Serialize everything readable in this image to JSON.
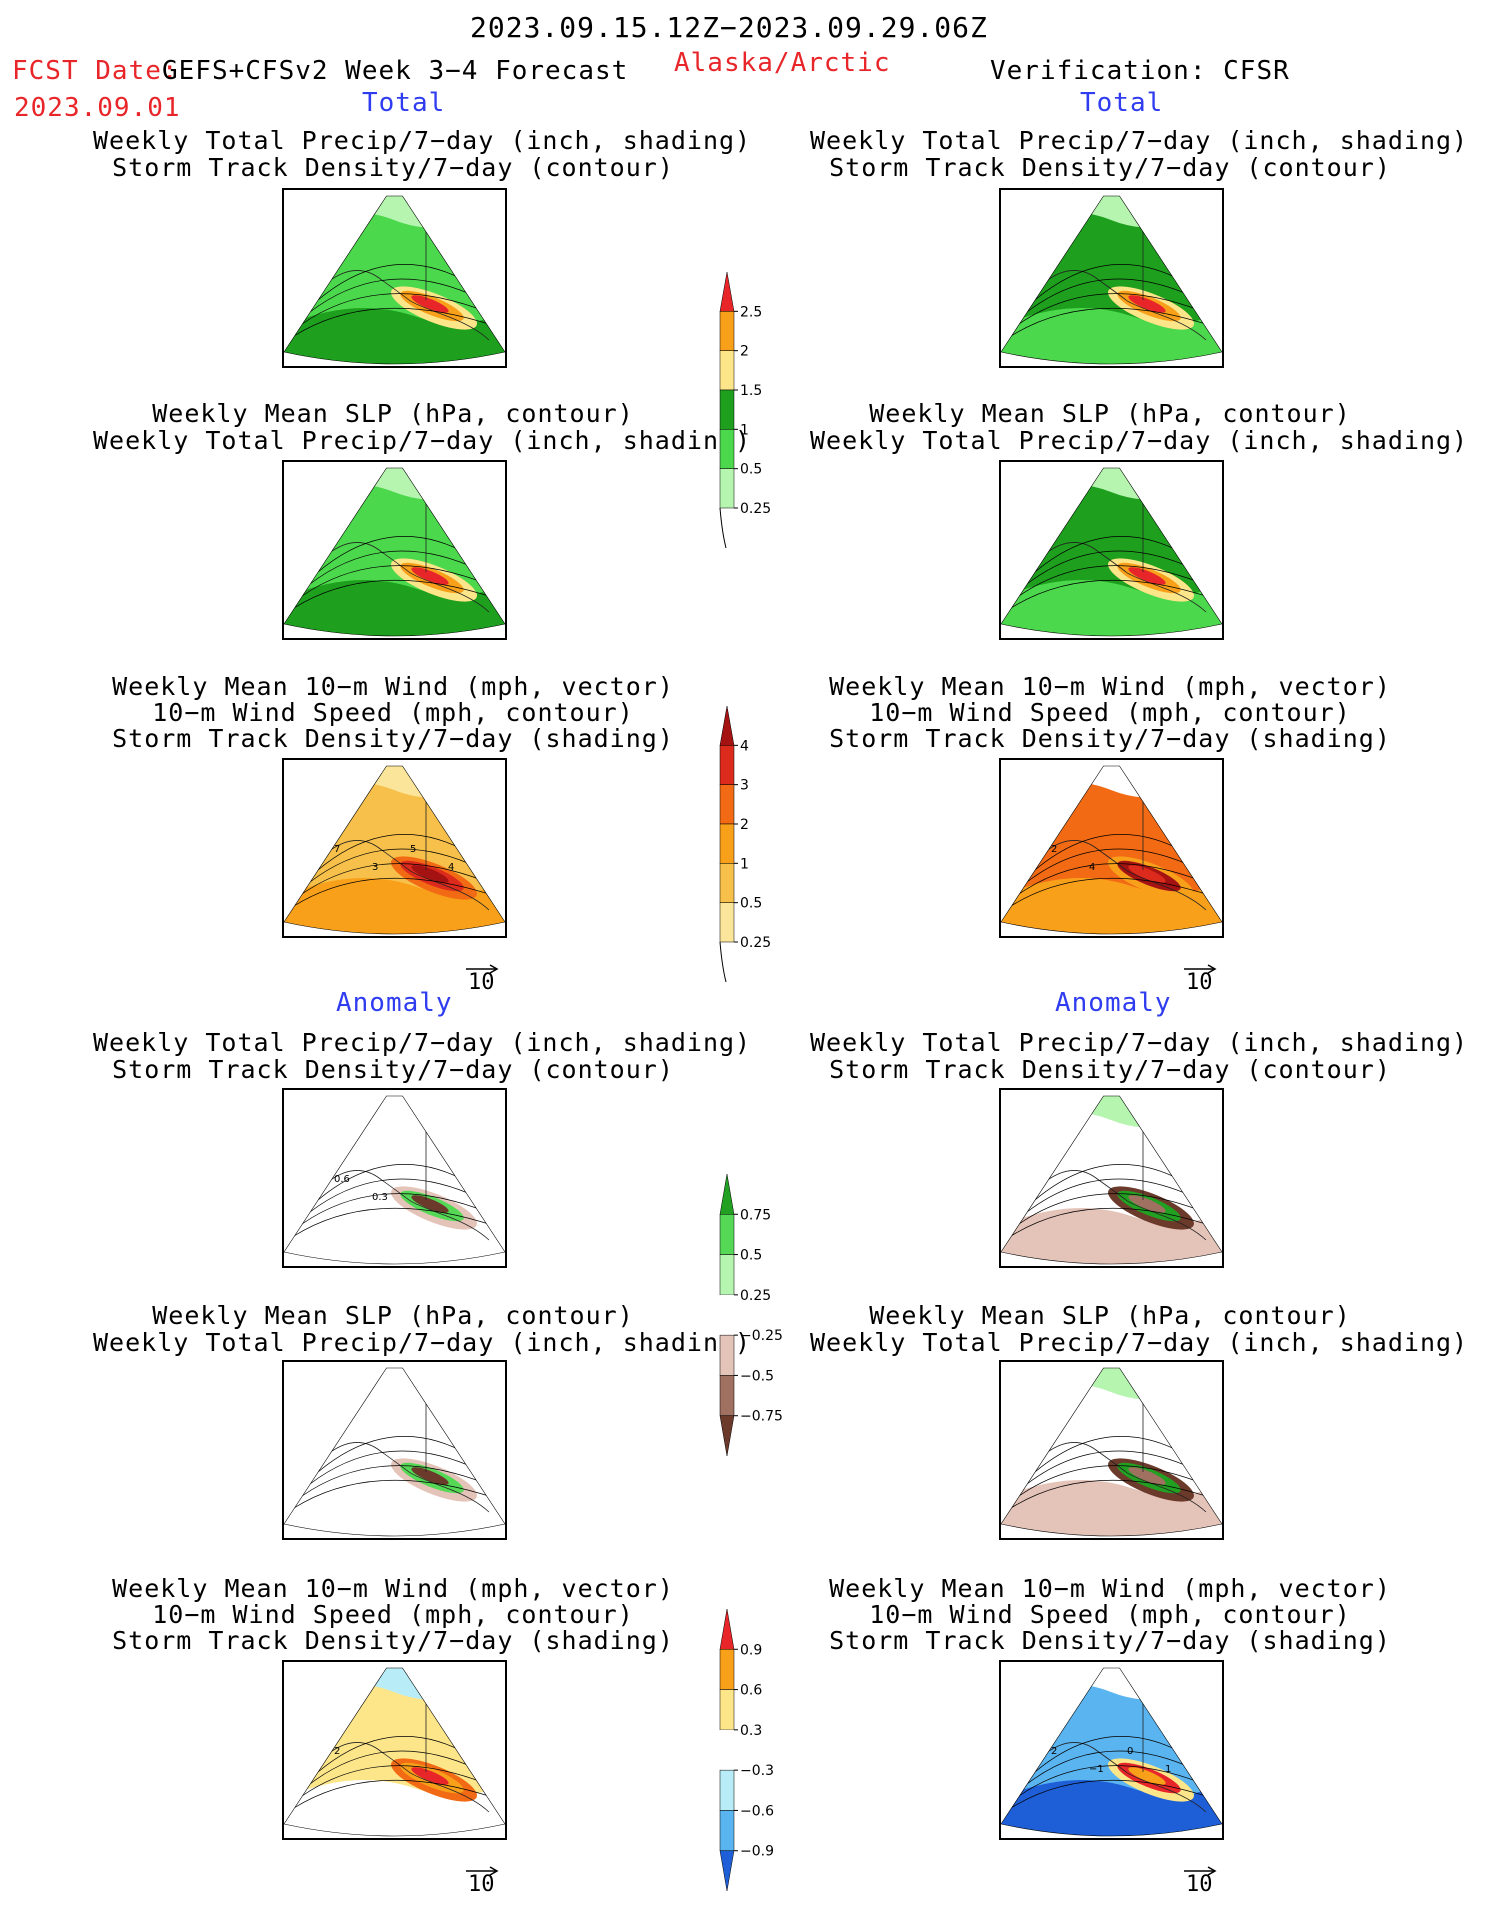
{
  "header": {
    "date_range": "2023.09.15.12Z−2023.09.29.06Z",
    "fcst_label": "FCST Date:",
    "model": "GEFS+CFSv2 Week 3−4 Forecast",
    "region": "Alaska/Arctic",
    "verification": "Verification: CFSR",
    "fcst_date": "2023.09.01"
  },
  "sections": {
    "total_left": "Total",
    "total_right": "Total",
    "anomaly_left": "Anomaly",
    "anomaly_right": "Anomaly"
  },
  "captions": {
    "precip_storm": [
      "Weekly Total Precip/7−day (inch, shading)",
      "Storm Track Density/7−day (contour)"
    ],
    "slp_precip": [
      "Weekly Mean SLP (hPa, contour)",
      "Weekly Total Precip/7−day (inch, shading)"
    ],
    "wind_storm": [
      "Weekly Mean 10−m Wind (mph, vector)",
      "10−m Wind Speed (mph, contour)",
      "Storm Track Density/7−day (shading)"
    ]
  },
  "vector_ref": "10",
  "colorbars": {
    "precip_total": {
      "labels": [
        "2.5",
        "2",
        "1.5",
        "1",
        "0.5",
        "0.25"
      ],
      "colors": [
        "#e8262a",
        "#f9a01b",
        "#fde68a",
        "#1ea01e",
        "#4cd84c",
        "#b6f5b0"
      ]
    },
    "storm_total": {
      "labels": [
        "4",
        "3",
        "2",
        "1",
        "0.5",
        "0.25"
      ],
      "colors": [
        "#a51212",
        "#dc2a1c",
        "#f26a14",
        "#f9a01b",
        "#f6c04a",
        "#fbe59a"
      ]
    },
    "precip_anom": {
      "labels": [
        "0.75",
        "0.5",
        "0.25",
        "−0.25",
        "−0.5",
        "−0.75"
      ],
      "colors": [
        "#22a022",
        "#55d855",
        "#b6f5b0",
        "#ffffff",
        "#e4c3b8",
        "#a07060",
        "#6b3a2a"
      ]
    },
    "storm_anom": {
      "labels": [
        "0.9",
        "0.6",
        "0.3",
        "−0.3",
        "−0.6",
        "−0.9"
      ],
      "colors": [
        "#e8262a",
        "#f9a01b",
        "#fde68a",
        "#ffffff",
        "#b8ecf6",
        "#5ab4f0",
        "#1e5fd8"
      ]
    }
  },
  "panel_marks": {
    "wind_total_left": [
      "7",
      "3",
      "5",
      "4"
    ],
    "wind_total_right": [
      "2",
      "4"
    ],
    "precip_anom_left": [
      "0.6",
      "0.3"
    ],
    "wind_anom_left": [
      "2"
    ],
    "wind_anom_right": [
      "2",
      "−1",
      "0",
      "1"
    ]
  },
  "chart_data": [
    {
      "type": "heatmap",
      "title": "Weekly Total Precip/7−day (inch, shading) / Storm Track Density/7−day (contour)",
      "column": "GEFS+CFSv2",
      "block": "Total",
      "colorbar": [
        0.25,
        0.5,
        1,
        1.5,
        2,
        2.5
      ]
    },
    {
      "type": "heatmap",
      "title": "Weekly Total Precip/7−day (inch, shading) / Storm Track Density/7−day (contour)",
      "column": "CFSR",
      "block": "Total",
      "colorbar": [
        0.25,
        0.5,
        1,
        1.5,
        2,
        2.5
      ]
    },
    {
      "type": "heatmap",
      "title": "Weekly Mean SLP (hPa, contour) / Weekly Total Precip/7−day (inch, shading)",
      "column": "GEFS+CFSv2",
      "block": "Total",
      "colorbar": [
        0.25,
        0.5,
        1,
        1.5,
        2,
        2.5
      ]
    },
    {
      "type": "heatmap",
      "title": "Weekly Mean SLP (hPa, contour) / Weekly Total Precip/7−day (inch, shading)",
      "column": "CFSR",
      "block": "Total",
      "colorbar": [
        0.25,
        0.5,
        1,
        1.5,
        2,
        2.5
      ]
    },
    {
      "type": "heatmap",
      "title": "Weekly Mean 10−m Wind / 10−m Wind Speed / Storm Track Density/7−day (shading)",
      "column": "GEFS+CFSv2",
      "block": "Total",
      "colorbar": [
        0.25,
        0.5,
        1,
        2,
        3,
        4
      ]
    },
    {
      "type": "heatmap",
      "title": "Weekly Mean 10−m Wind / 10−m Wind Speed / Storm Track Density/7−day (shading)",
      "column": "CFSR",
      "block": "Total",
      "colorbar": [
        0.25,
        0.5,
        1,
        2,
        3,
        4
      ]
    },
    {
      "type": "heatmap",
      "title": "Weekly Total Precip/7−day (inch, shading) / Storm Track Density/7−day (contour)",
      "column": "GEFS+CFSv2",
      "block": "Anomaly",
      "colorbar": [
        -0.75,
        -0.5,
        -0.25,
        0.25,
        0.5,
        0.75
      ]
    },
    {
      "type": "heatmap",
      "title": "Weekly Total Precip/7−day (inch, shading) / Storm Track Density/7−day (contour)",
      "column": "CFSR",
      "block": "Anomaly",
      "colorbar": [
        -0.75,
        -0.5,
        -0.25,
        0.25,
        0.5,
        0.75
      ]
    },
    {
      "type": "heatmap",
      "title": "Weekly Mean SLP (hPa, contour) / Weekly Total Precip/7−day (inch, shading)",
      "column": "GEFS+CFSv2",
      "block": "Anomaly",
      "colorbar": [
        -0.75,
        -0.5,
        -0.25,
        0.25,
        0.5,
        0.75
      ]
    },
    {
      "type": "heatmap",
      "title": "Weekly Mean SLP (hPa, contour) / Weekly Total Precip/7−day (inch, shading)",
      "column": "CFSR",
      "block": "Anomaly",
      "colorbar": [
        -0.75,
        -0.5,
        -0.25,
        0.25,
        0.5,
        0.75
      ]
    },
    {
      "type": "heatmap",
      "title": "Weekly Mean 10−m Wind / 10−m Wind Speed / Storm Track Density/7−day (shading)",
      "column": "GEFS+CFSv2",
      "block": "Anomaly",
      "colorbar": [
        -0.9,
        -0.6,
        -0.3,
        0.3,
        0.6,
        0.9
      ]
    },
    {
      "type": "heatmap",
      "title": "Weekly Mean 10−m Wind / 10−m Wind Speed / Storm Track Density/7−day (shading)",
      "column": "CFSR",
      "block": "Anomaly",
      "colorbar": [
        -0.9,
        -0.6,
        -0.3,
        0.3,
        0.6,
        0.9
      ]
    }
  ]
}
